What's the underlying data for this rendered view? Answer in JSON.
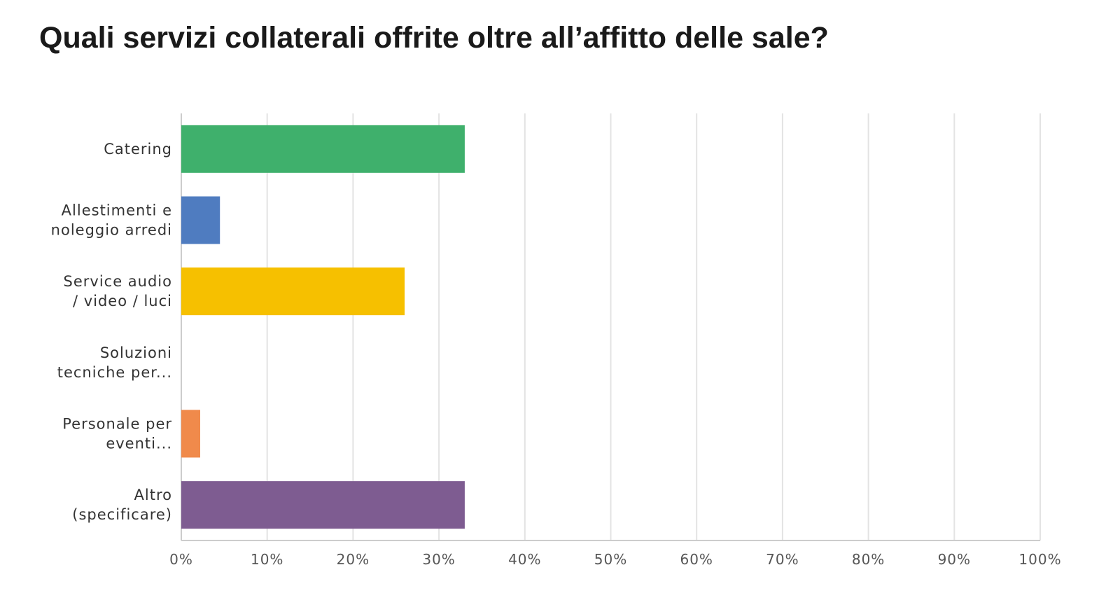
{
  "title": "Quali servizi collaterali offrite oltre all’affitto delle sale?",
  "chart_data": {
    "type": "bar",
    "orientation": "horizontal",
    "categories": [
      [
        "Catering"
      ],
      [
        "Allestimenti e",
        "noleggio arredi"
      ],
      [
        "Service audio",
        "/ video / luci"
      ],
      [
        "Soluzioni",
        "tecniche per..."
      ],
      [
        "Personale per",
        "eventi..."
      ],
      [
        "Altro",
        "(specificare)"
      ]
    ],
    "values": [
      33,
      4.5,
      26,
      0,
      2.2,
      33
    ],
    "colors": [
      "#3fb06c",
      "#4f7cc0",
      "#f6c000",
      "#999999",
      "#f08a4b",
      "#7e5c91"
    ],
    "xlim": [
      0,
      100
    ],
    "x_ticks": [
      "0%",
      "10%",
      "20%",
      "30%",
      "40%",
      "50%",
      "60%",
      "70%",
      "80%",
      "90%",
      "100%"
    ],
    "grid": true,
    "legend": "none"
  }
}
